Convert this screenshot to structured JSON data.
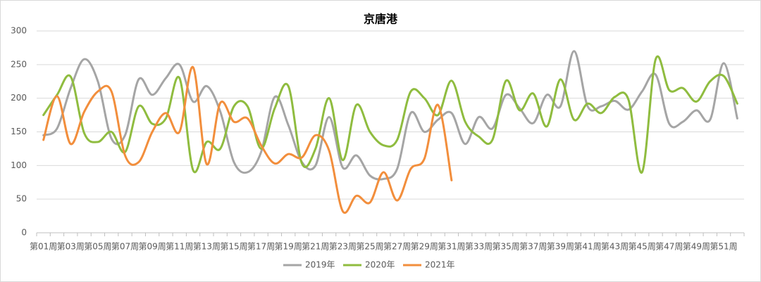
{
  "chart_data": {
    "type": "line",
    "title": "京唐港",
    "categories": [
      "第01周",
      null,
      "第03周",
      null,
      "第05周",
      null,
      "第07周",
      null,
      "第09周",
      null,
      "第11周",
      null,
      "第13周",
      null,
      "第15周",
      null,
      "第17周",
      null,
      "第19周",
      null,
      "第21周",
      null,
      "第23周",
      null,
      "第25周",
      null,
      "第27周",
      null,
      "第29周",
      null,
      "第31周",
      null,
      "第33周",
      null,
      "第35周",
      null,
      "第37周",
      null,
      "第39周",
      null,
      "第41周",
      null,
      "第43周",
      null,
      "第45周",
      null,
      "第47周",
      null,
      "第49周",
      null,
      "第51周",
      null
    ],
    "series": [
      {
        "name": "2019年",
        "color": "#a5a5a5",
        "values": [
          145,
          155,
          215,
          258,
          225,
          140,
          145,
          228,
          205,
          230,
          250,
          195,
          218,
          180,
          105,
          90,
          120,
          202,
          160,
          105,
          100,
          172,
          97,
          115,
          85,
          80,
          95,
          178,
          150,
          168,
          178,
          132,
          172,
          155,
          205,
          185,
          163,
          205,
          188,
          270,
          188,
          188,
          196,
          183,
          210,
          235,
          162,
          165,
          182,
          168,
          252,
          170
        ]
      },
      {
        "name": "2020年",
        "color": "#8fbc3f",
        "values": [
          175,
          205,
          232,
          148,
          135,
          150,
          120,
          188,
          162,
          170,
          230,
          93,
          135,
          125,
          188,
          188,
          125,
          185,
          218,
          103,
          125,
          200,
          108,
          190,
          150,
          130,
          138,
          210,
          200,
          175,
          226,
          165,
          143,
          138,
          226,
          182,
          207,
          158,
          228,
          168,
          192,
          178,
          202,
          198,
          90,
          258,
          212,
          215,
          195,
          225,
          233,
          192
        ]
      },
      {
        "name": "2021年",
        "color": "#f28e3c",
        "values": [
          138,
          203,
          132,
          180,
          210,
          210,
          115,
          105,
          150,
          178,
          150,
          246,
          102,
          193,
          165,
          170,
          130,
          103,
          117,
          112,
          145,
          122,
          32,
          55,
          45,
          90,
          48,
          95,
          110,
          190,
          78,
          null,
          null,
          null,
          null,
          null,
          null,
          null,
          null,
          null,
          null,
          null,
          null,
          null,
          null,
          null,
          null,
          null,
          null,
          null,
          null,
          null
        ]
      }
    ],
    "ylim": [
      0,
      300
    ],
    "yticks": [
      0,
      50,
      100,
      150,
      200,
      250,
      300
    ],
    "grid": true,
    "legend": "bottom"
  }
}
